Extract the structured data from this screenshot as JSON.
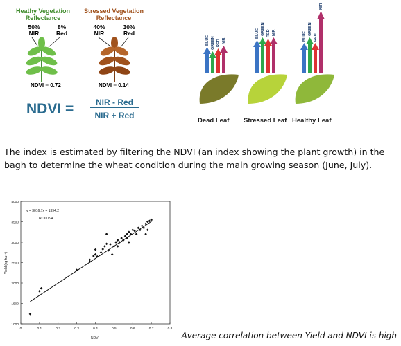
{
  "leaves": {
    "healthy_title_1": "Heathy Vegetation",
    "healthy_title_2": "Reflectance",
    "healthy_nir_pct": "50%",
    "healthy_nir": "NIR",
    "healthy_red_pct": "8%",
    "healthy_red": "Red",
    "healthy_ndvi": "NDVI = 0.72",
    "stressed_title_1": "Stressed Vegetation",
    "stressed_title_2": "Reflectance",
    "stressed_nir_pct": "40%",
    "stressed_nir": "NIR",
    "stressed_red_pct": "30%",
    "stressed_red": "Red",
    "stressed_ndvi": "NDVI = 0.14"
  },
  "formula": {
    "lhs": "NDVI =",
    "numerator": "NIR - Red",
    "denominator": "NIR + Red"
  },
  "bands": {
    "blue": "BLUE",
    "green": "GREEN",
    "red": "RED",
    "nir": "NIR",
    "dead_label": "Dead Leaf",
    "stressed_label": "Stressed Leaf",
    "healthy_label": "Healthy Leaf"
  },
  "paragraph": "The index is estimated by filtering the NDVI (an index showing the plant growth) in the bagh to determine the wheat condition during the main growing season (June, July).",
  "chart_data": {
    "type": "scatter",
    "xlabel": "NDVI",
    "ylabel": "Yield (kg ha⁻¹)",
    "equation": "y = 3016.7x + 1394.2",
    "r2": "R² = 0.94",
    "xlim": [
      0,
      0.8
    ],
    "ylim": [
      1000,
      4000
    ],
    "x_ticks": [
      "0",
      "0.1",
      "0.2",
      "0.3",
      "0.4",
      "0.5",
      "0.6",
      "0.7",
      "0.8"
    ],
    "y_ticks": [
      "1000",
      "1500",
      "2000",
      "2500",
      "3000",
      "3500",
      "4000"
    ],
    "trendline": {
      "slope": 3016.7,
      "intercept": 1394.2,
      "x_range": [
        0.05,
        0.71
      ]
    },
    "points": [
      [
        0.05,
        1240
      ],
      [
        0.1,
        1800
      ],
      [
        0.11,
        1870
      ],
      [
        0.3,
        2320
      ],
      [
        0.37,
        2520
      ],
      [
        0.37,
        2570
      ],
      [
        0.39,
        2660
      ],
      [
        0.4,
        2820
      ],
      [
        0.4,
        2700
      ],
      [
        0.41,
        2650
      ],
      [
        0.43,
        2750
      ],
      [
        0.44,
        2830
      ],
      [
        0.45,
        2900
      ],
      [
        0.46,
        3200
      ],
      [
        0.46,
        2960
      ],
      [
        0.47,
        2800
      ],
      [
        0.48,
        2950
      ],
      [
        0.49,
        2700
      ],
      [
        0.5,
        2900
      ],
      [
        0.51,
        3000
      ],
      [
        0.52,
        2900
      ],
      [
        0.52,
        3050
      ],
      [
        0.53,
        3000
      ],
      [
        0.54,
        3100
      ],
      [
        0.55,
        3050
      ],
      [
        0.56,
        3150
      ],
      [
        0.57,
        3200
      ],
      [
        0.57,
        3100
      ],
      [
        0.58,
        3000
      ],
      [
        0.58,
        3250
      ],
      [
        0.59,
        3200
      ],
      [
        0.6,
        3300
      ],
      [
        0.61,
        3280
      ],
      [
        0.62,
        3200
      ],
      [
        0.63,
        3350
      ],
      [
        0.64,
        3300
      ],
      [
        0.65,
        3400
      ],
      [
        0.66,
        3350
      ],
      [
        0.67,
        3200
      ],
      [
        0.67,
        3450
      ],
      [
        0.68,
        3500
      ],
      [
        0.69,
        3520
      ],
      [
        0.7,
        3550
      ],
      [
        0.68,
        3300
      ]
    ]
  },
  "caption": "Average correlation between Yield and NDVI is high"
}
